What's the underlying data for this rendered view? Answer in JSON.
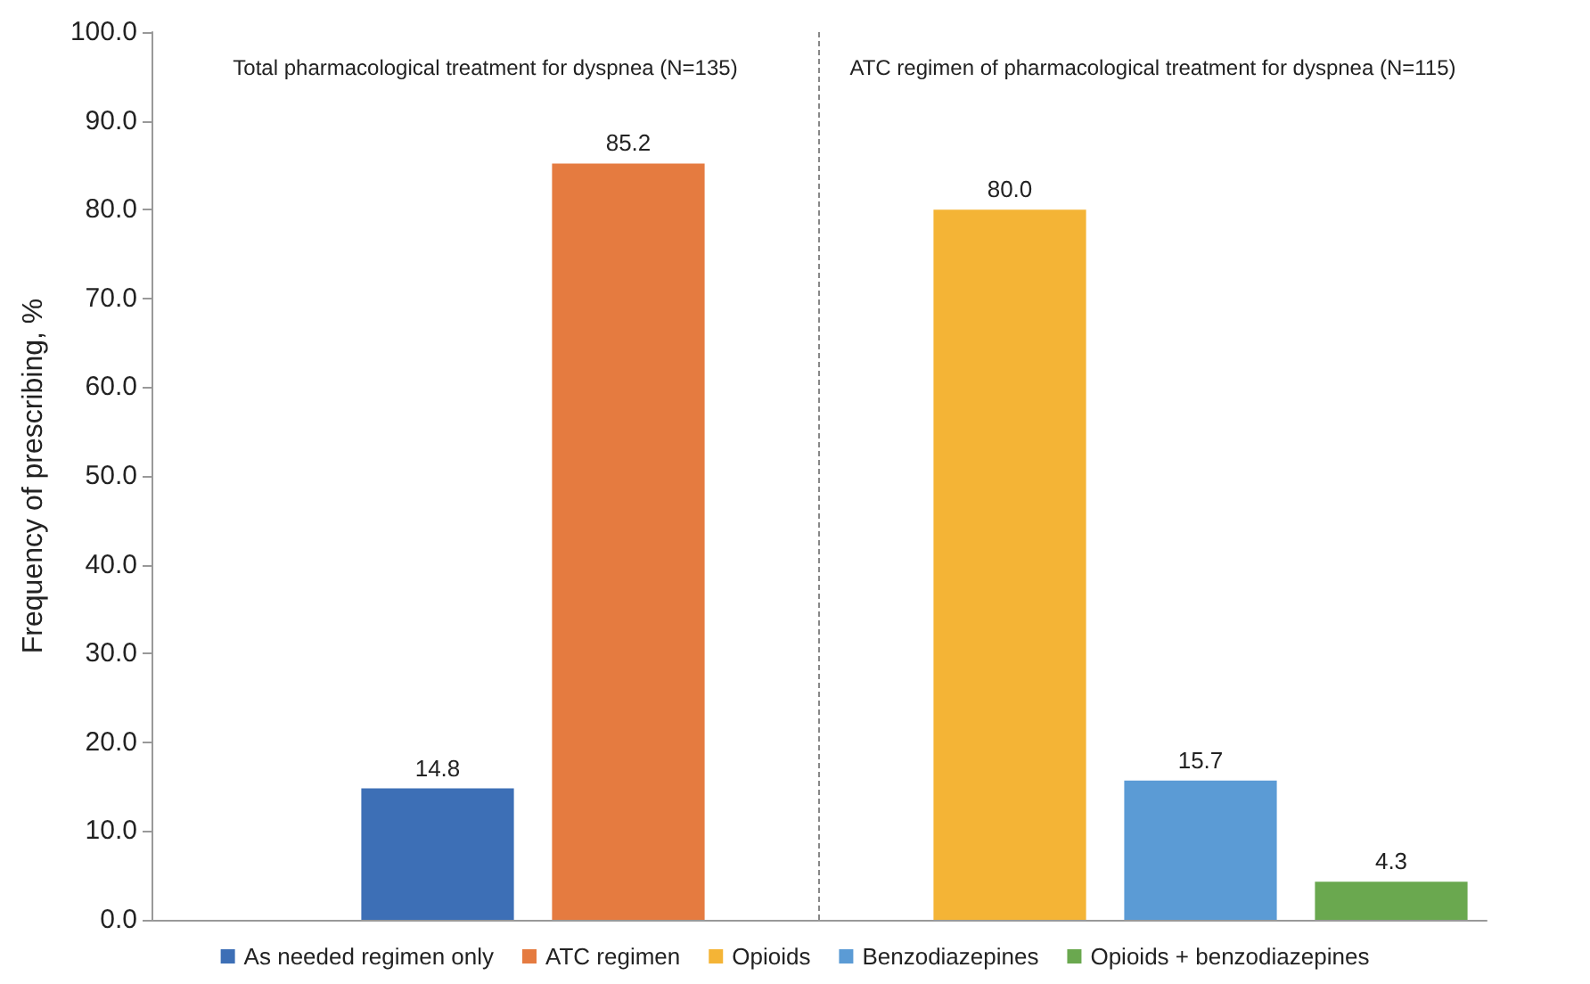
{
  "chart_data": {
    "type": "bar",
    "ylabel": "Frequency of prescribing, %",
    "categories": [
      null,
      null,
      null,
      null,
      null,
      null,
      null
    ],
    "series": [
      {
        "name": "As needed regimen only",
        "color": "#3d6fb6",
        "values": [
          null,
          14.8,
          null,
          null,
          null,
          null,
          null
        ],
        "value_labels": [
          null,
          "14.8",
          null,
          null,
          null,
          null,
          null
        ]
      },
      {
        "name": "ATC regimen",
        "color": "#e57b40",
        "values": [
          null,
          null,
          85.2,
          null,
          null,
          null,
          null
        ],
        "value_labels": [
          null,
          null,
          "85.2",
          null,
          null,
          null,
          null
        ]
      },
      {
        "name": "Opioids",
        "color": "#f4b436",
        "values": [
          null,
          null,
          null,
          null,
          80.0,
          null,
          null
        ],
        "value_labels": [
          null,
          null,
          null,
          null,
          "80.0",
          null,
          null
        ]
      },
      {
        "name": "Benzodiazepines",
        "color": "#5b9bd5",
        "values": [
          null,
          null,
          null,
          null,
          null,
          15.7,
          null
        ],
        "value_labels": [
          null,
          null,
          null,
          null,
          null,
          "15.7",
          null
        ]
      },
      {
        "name": "Opioids + benzodiazepines",
        "color": "#6aa84f",
        "values": [
          null,
          null,
          null,
          null,
          null,
          null,
          4.3
        ],
        "value_labels": [
          null,
          null,
          null,
          null,
          null,
          null,
          "4.3"
        ]
      }
    ],
    "stacked": true,
    "ylim": [
      0,
      100
    ],
    "yticks": [
      {
        "value": 0,
        "label": "0.0"
      },
      {
        "value": 10,
        "label": "10.0"
      },
      {
        "value": 20,
        "label": "20.0"
      },
      {
        "value": 30,
        "label": "30.0"
      },
      {
        "value": 40,
        "label": "40.0"
      },
      {
        "value": 50,
        "label": "50.0"
      },
      {
        "value": 60,
        "label": "60.0"
      },
      {
        "value": 70,
        "label": "70.0"
      },
      {
        "value": 80,
        "label": "80.0"
      },
      {
        "value": 90,
        "label": "90.0"
      },
      {
        "value": 100,
        "label": "100.0"
      }
    ],
    "annotations": [
      "Total pharmacological treatment for dyspnea (N=135)",
      "ATC regimen of pharmacological treatment for dyspnea (N=115)"
    ],
    "grid": false,
    "legend": "bottom"
  }
}
